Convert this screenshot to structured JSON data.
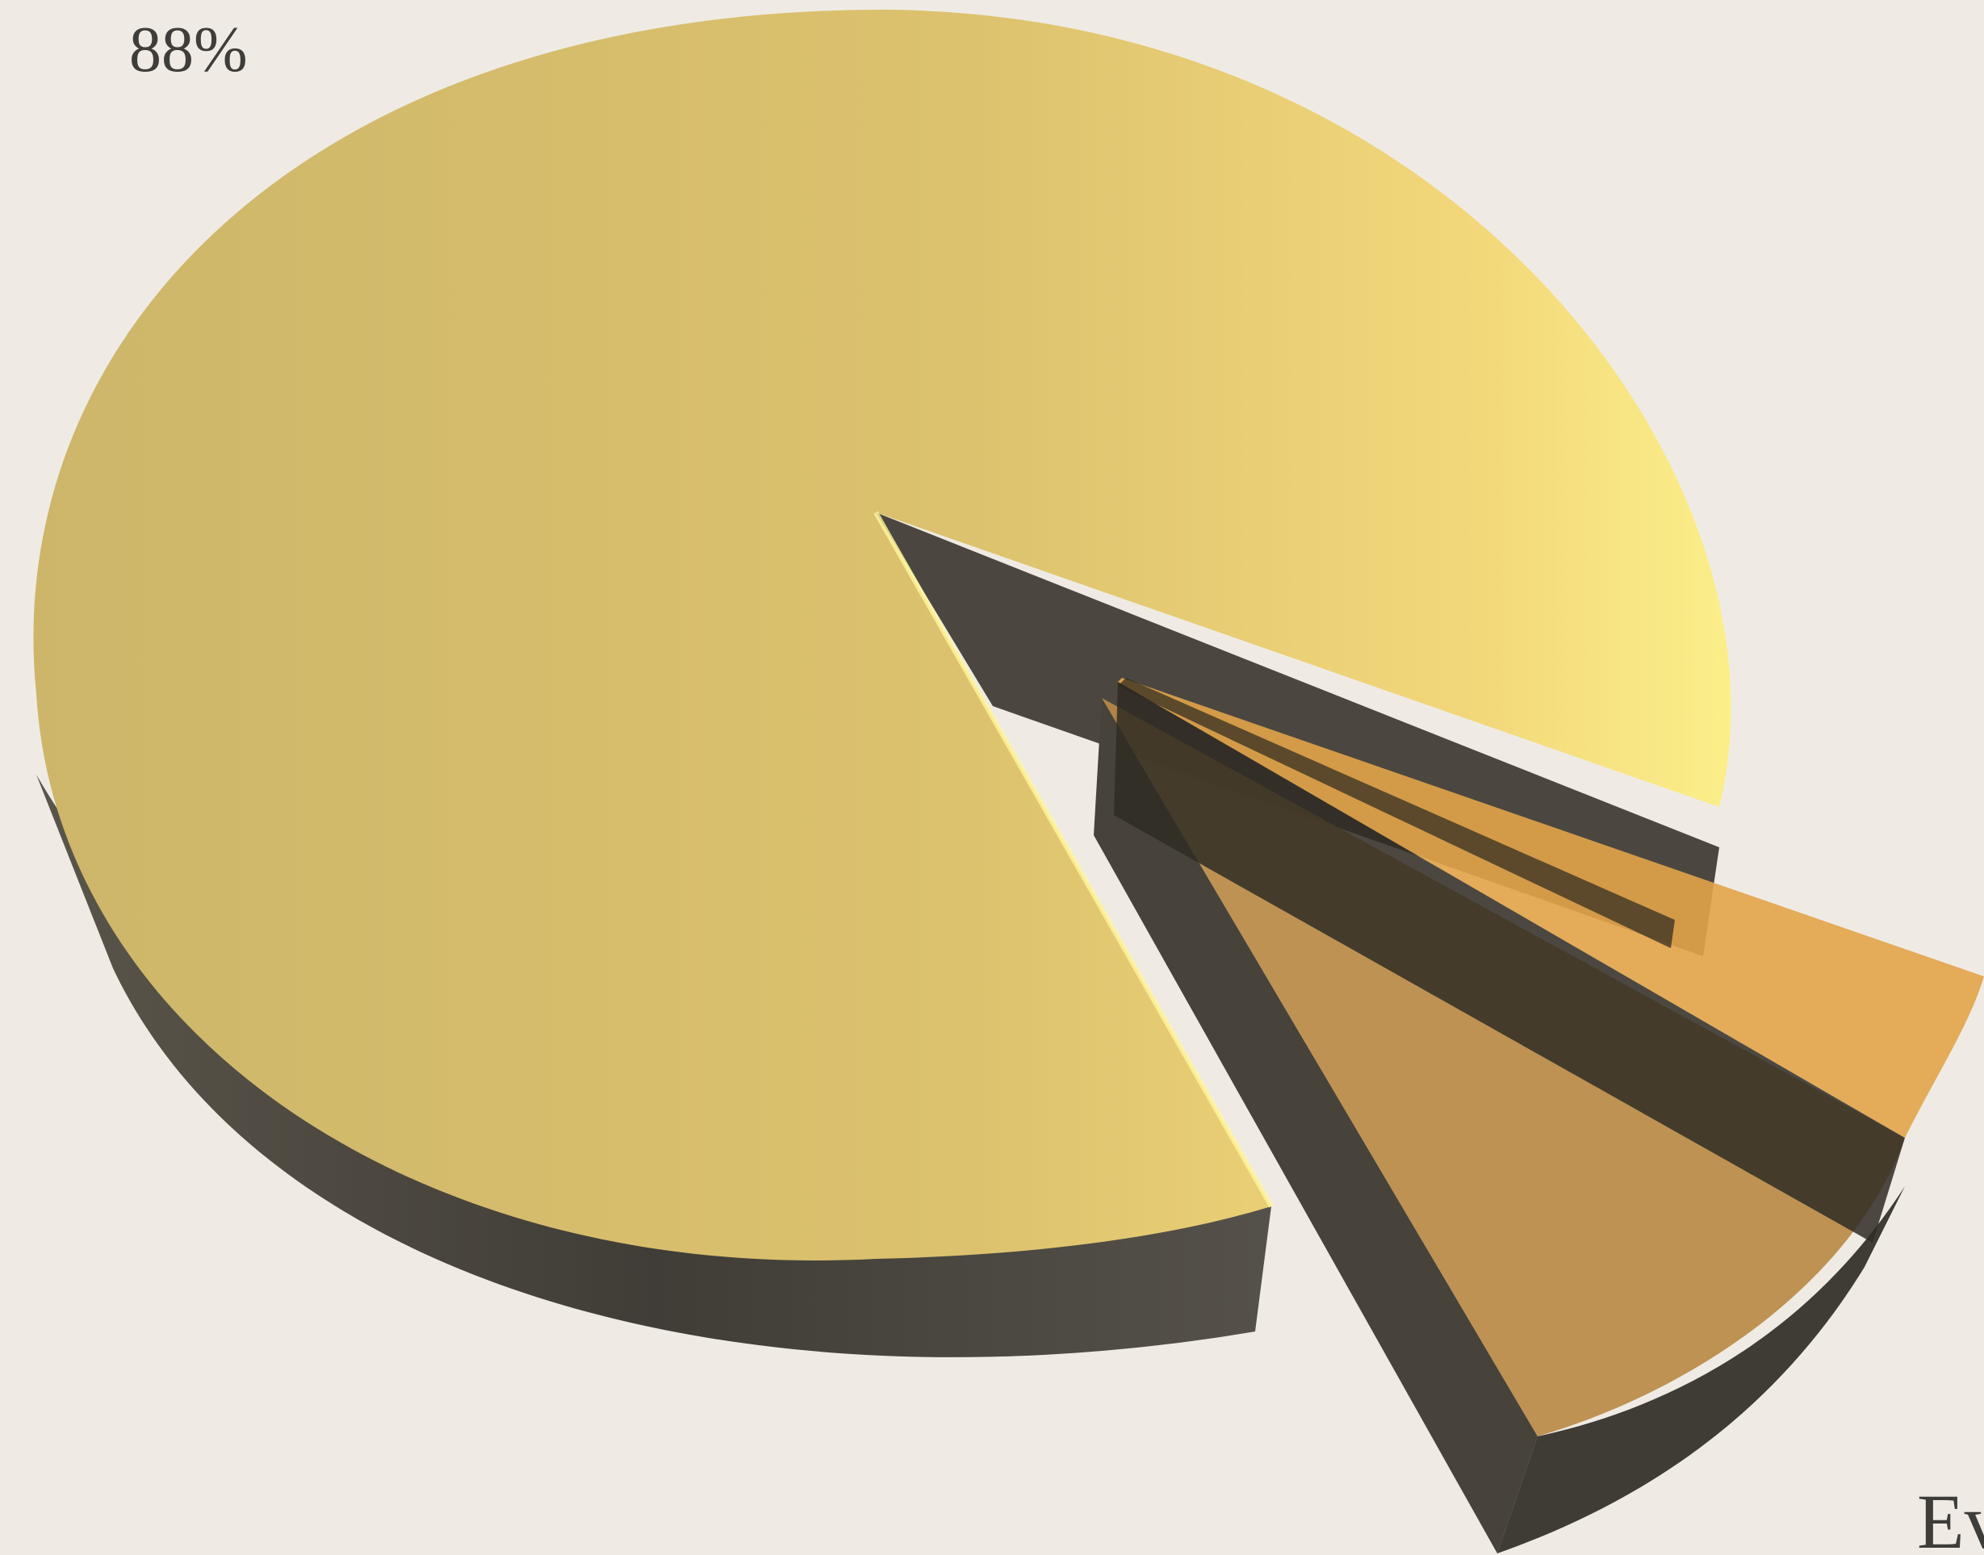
{
  "chart_data": {
    "type": "pie",
    "style": "3d-exploded",
    "slices": [
      {
        "label": "",
        "value": 88,
        "value_label": "88%",
        "color": "#e6c56c"
      },
      {
        "label": "",
        "value": 7,
        "value_label": "",
        "color": "#b98a46"
      },
      {
        "label": "",
        "value": 5,
        "value_label": "",
        "color": "#e2a449"
      }
    ],
    "partial_text": "Ev",
    "title": "",
    "legend": "none"
  },
  "colors": {
    "background": "#efebe4",
    "side_wall": "#4a463f",
    "text": "#3f3d3a"
  }
}
